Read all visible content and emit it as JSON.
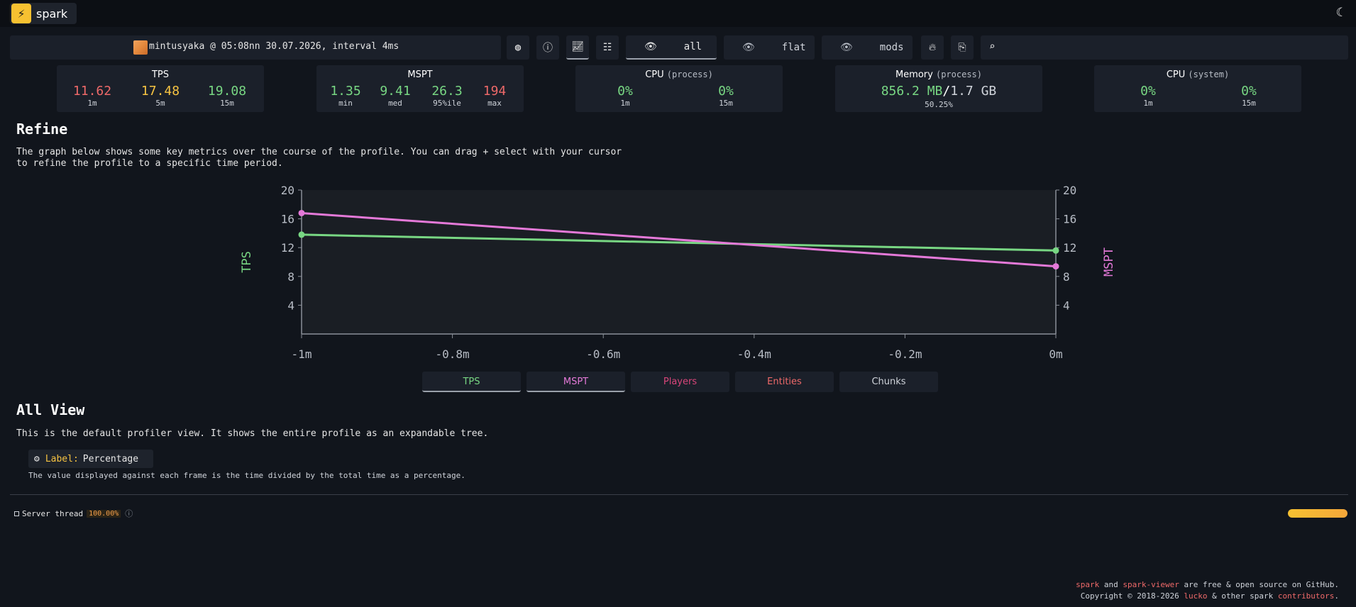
{
  "app": {
    "name": "spark"
  },
  "header": {
    "bolt_icon": "lightning-bolt-icon",
    "theme_icon": "moon-icon"
  },
  "profile": {
    "info": "mintusyaka @ 05:08nn 30.07.2026, interval 4ms"
  },
  "toolbar": {
    "mode_all": "all",
    "mode_flat": "flat",
    "mode_mods": "mods"
  },
  "widgets": {
    "tps": {
      "title": "TPS",
      "values": [
        {
          "value": "11.62",
          "label": "1m"
        },
        {
          "value": "17.48",
          "label": "5m"
        },
        {
          "value": "19.08",
          "label": "15m"
        }
      ]
    },
    "mspt": {
      "title": "MSPT",
      "values": [
        {
          "value": "1.35",
          "label": "min"
        },
        {
          "value": "9.41",
          "label": "med"
        },
        {
          "value": "26.3",
          "label": "95%ile"
        },
        {
          "value": "194",
          "label": "max"
        }
      ]
    },
    "cpu_process": {
      "title": "CPU",
      "subtitle": "(process)",
      "values": [
        {
          "value": "0%",
          "label": "1m"
        },
        {
          "value": "0%",
          "label": "15m"
        }
      ]
    },
    "memory": {
      "title": "Memory",
      "subtitle": "(process)",
      "used": "856.2 MB",
      "total": "1.7 GB",
      "percent": "50.25%"
    },
    "cpu_system": {
      "title": "CPU",
      "subtitle": "(system)",
      "values": [
        {
          "value": "0%",
          "label": "1m"
        },
        {
          "value": "0%",
          "label": "15m"
        }
      ]
    }
  },
  "refine": {
    "title": "Refine",
    "description": "The graph below shows some key metrics over the course of the profile. You can drag + select with your cursor to refine the profile to a specific time period."
  },
  "chart_data": {
    "type": "line",
    "x": [
      -1,
      0
    ],
    "x_tick_labels": [
      "-1m",
      "-0.8m",
      "-0.6m",
      "-0.4m",
      "-0.2m",
      "0m"
    ],
    "xlim": [
      -1,
      0
    ],
    "ylim": [
      0,
      20
    ],
    "y_ticks": [
      4,
      8,
      12,
      16,
      20
    ],
    "ylabel": "TPS",
    "y2label": "MSPT",
    "y2lim": [
      0,
      20
    ],
    "grid": false,
    "series": [
      {
        "name": "TPS",
        "color": "#78d783",
        "values": [
          13.8,
          11.6
        ]
      },
      {
        "name": "MSPT",
        "color": "#e479d8",
        "values": [
          16.8,
          9.4
        ]
      }
    ]
  },
  "toggles": [
    {
      "label": "TPS",
      "color": "#78d783",
      "on": true
    },
    {
      "label": "MSPT",
      "color": "#e479d8",
      "on": true
    },
    {
      "label": "Players",
      "color": "#d9457a",
      "on": false
    },
    {
      "label": "Entities",
      "color": "#ee6969",
      "on": false
    },
    {
      "label": "Chunks",
      "color": "#cfd3da",
      "on": false
    }
  ],
  "all_view": {
    "title": "All View",
    "description": "This is the default profiler view. It shows the entire profile as an expandable tree.",
    "label_key": "Label:",
    "label_value": "Percentage",
    "label_description": "The value displayed against each frame is the time divided by the total time as a percentage."
  },
  "thread": {
    "name": "Server thread",
    "percent": "100.00%"
  },
  "footer": {
    "line1_a": "spark",
    "line1_b": " and ",
    "line1_c": "spark-viewer",
    "line1_d": " are free & open source on GitHub.",
    "line2_a": "Copyright © 2018-2026 ",
    "line2_b": "lucko",
    "line2_c": " & other spark ",
    "line2_d": "contributors",
    "line2_e": "."
  }
}
